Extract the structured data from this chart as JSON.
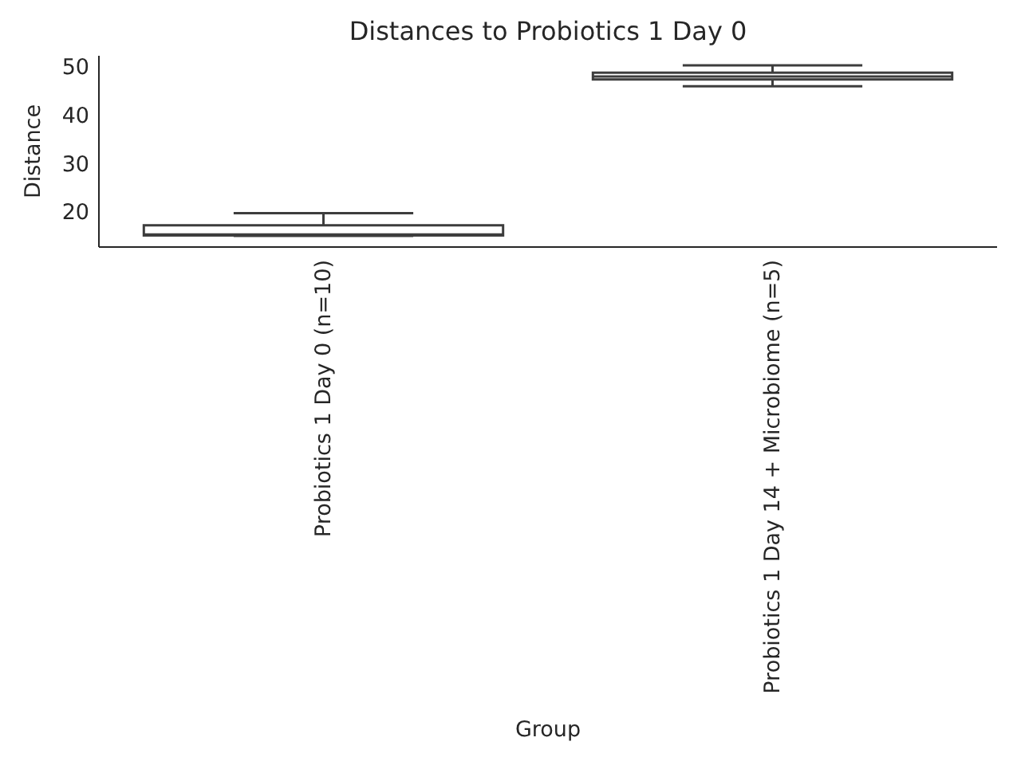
{
  "chart_data": {
    "type": "box",
    "title": "Distances to Probiotics 1 Day 0",
    "xlabel": "Group",
    "ylabel": "Distance",
    "categories": [
      "Probiotics 1 Day 0 (n=10)",
      "Probiotics 1 Day 14 + Microbiome (n=5)"
    ],
    "boxes": [
      {
        "low": 15,
        "q1": 15.1,
        "median": 15.3,
        "q3": 17.2,
        "high": 19.7
      },
      {
        "low": 46,
        "q1": 47.4,
        "median": 48,
        "q3": 48.8,
        "high": 50.3
      }
    ],
    "color": "#3d3d3d",
    "ylim": [
      12.7,
      52.3
    ],
    "yticks": [
      20,
      30,
      40,
      50
    ],
    "grid": false
  }
}
